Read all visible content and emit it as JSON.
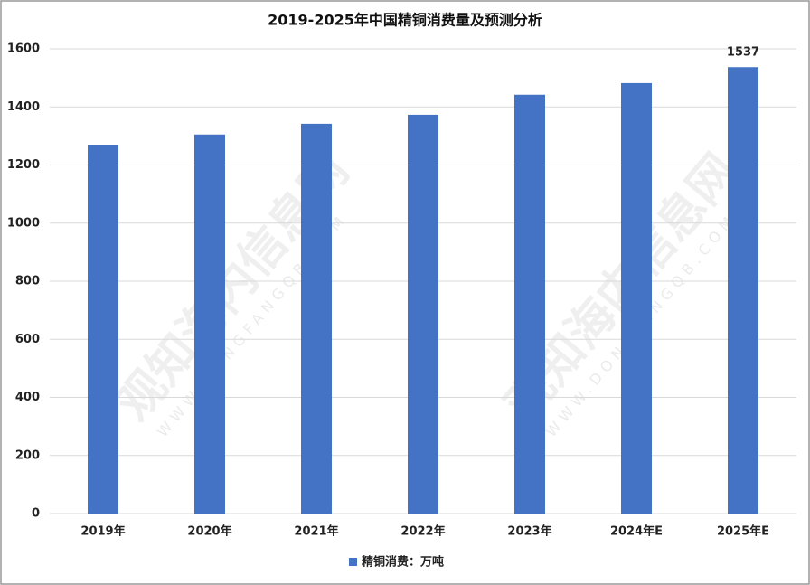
{
  "chart_data": {
    "type": "bar",
    "title": "2019-2025年中国精铜消费量及预测分析",
    "categories": [
      "2019年",
      "2020年",
      "2021年",
      "2022年",
      "2023年",
      "2024年E",
      "2025年E"
    ],
    "series": [
      {
        "name": "精铜消费：万吨",
        "color": "#4472c4",
        "values": [
          1270,
          1305,
          1342,
          1373,
          1442,
          1482,
          1537
        ]
      }
    ],
    "ylim": [
      0,
      1600
    ],
    "yticks": [
      0,
      200,
      400,
      600,
      800,
      1000,
      1200,
      1400,
      1600
    ],
    "grid": true,
    "legend": "bottom",
    "watermark": {
      "text": "观知海内信息网",
      "url": "WWW.DONGFANGQB.COM"
    }
  }
}
